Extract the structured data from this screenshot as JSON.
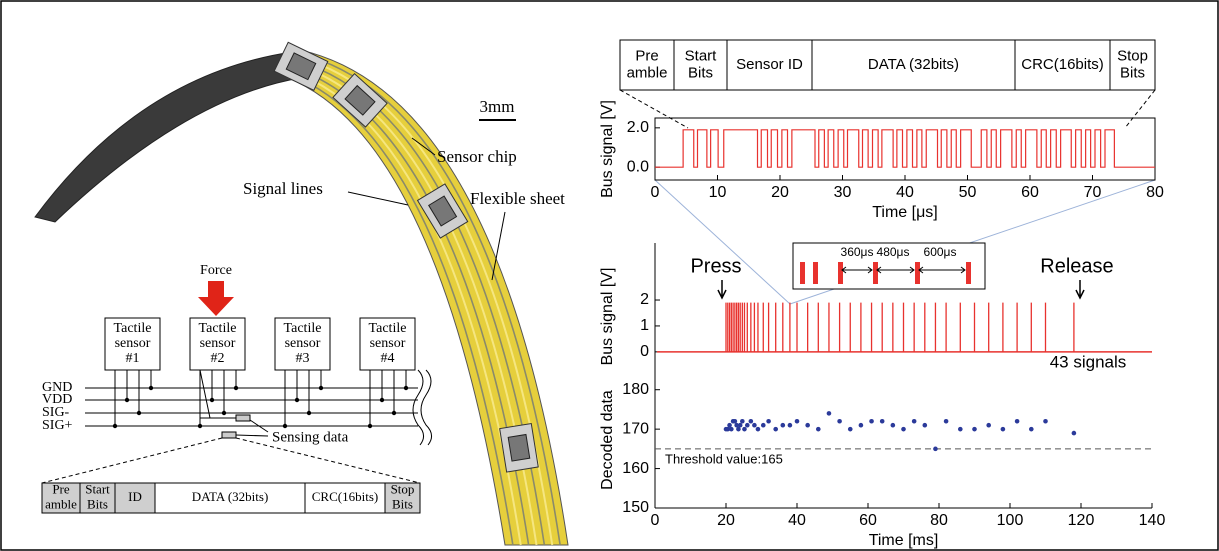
{
  "scale_bar": "3mm",
  "labels": {
    "sensor_chip": "Sensor chip",
    "signal_lines": "Signal lines",
    "flexible_sheet": "Flexible sheet",
    "force": "Force",
    "sensing_data": "Sensing data"
  },
  "sensors": [
    [
      "Tactile",
      "sensor",
      "#1"
    ],
    [
      "Tactile",
      "sensor",
      "#2"
    ],
    [
      "Tactile",
      "sensor",
      "#3"
    ],
    [
      "Tactile",
      "sensor",
      "#4"
    ]
  ],
  "bus_lines": [
    "GND",
    "VDD",
    "SIG-",
    "SIG+"
  ],
  "packet_small": [
    [
      "Pre",
      "amble"
    ],
    [
      "Start",
      "Bits"
    ],
    [
      "ID"
    ],
    [
      "DATA (32bits)"
    ],
    [
      "CRC(16bits)"
    ],
    [
      "Stop",
      "Bits"
    ]
  ],
  "packet_large": [
    [
      "Pre",
      "amble"
    ],
    [
      "Start",
      "Bits"
    ],
    [
      "Sensor ID"
    ],
    [
      "DATA (32bits)"
    ],
    [
      "CRC(16bits)"
    ],
    [
      "Stop",
      "Bits"
    ]
  ],
  "chart_data": [
    {
      "type": "line",
      "xlabel": "Time [μs]",
      "ylabel": "Bus signal [V]",
      "xlim": [
        0,
        80
      ],
      "ylim": [
        -0.65,
        2.5
      ],
      "xticks": [
        0,
        10,
        20,
        30,
        40,
        50,
        60,
        70,
        80
      ],
      "yticks": [
        {
          "value": 0,
          "label": "0.0"
        },
        {
          "value": 2,
          "label": "2.0"
        }
      ],
      "color": "#e8322e",
      "x": [
        0,
        4.5,
        4.5,
        6.2,
        6.2,
        6.8,
        6.8,
        8.3,
        8.3,
        8.9,
        8.9,
        10.1,
        10.1,
        11,
        11,
        16.4,
        16.4,
        17,
        17,
        18,
        18,
        18.6,
        18.6,
        19.6,
        19.6,
        20.3,
        20.3,
        21.2,
        21.2,
        21.9,
        21.9,
        25.6,
        25.6,
        26.2,
        26.2,
        27.1,
        27.1,
        27.7,
        27.7,
        28.6,
        28.6,
        29.3,
        29.3,
        30.2,
        30.2,
        30.8,
        30.8,
        32.6,
        32.6,
        33.2,
        33.2,
        34.1,
        34.1,
        34.8,
        34.8,
        35.7,
        35.7,
        36.3,
        36.3,
        38.1,
        38.1,
        38.7,
        38.7,
        39.6,
        39.6,
        40.3,
        40.3,
        41.2,
        41.2,
        41.9,
        41.9,
        42.7,
        42.7,
        43.4,
        43.4,
        45.2,
        45.2,
        45.8,
        45.8,
        46.7,
        46.7,
        47.4,
        47.4,
        48.2,
        48.2,
        48.9,
        48.9,
        50.6,
        50.6,
        52.2,
        52.2,
        53.1,
        53.1,
        53.8,
        53.8,
        54.6,
        54.6,
        55.3,
        55.3,
        57.1,
        57.1,
        57.8,
        57.8,
        58.6,
        58.6,
        59.3,
        59.3,
        61.1,
        61.1,
        61.8,
        61.8,
        62.6,
        62.6,
        63.3,
        63.3,
        64.2,
        64.2,
        64.9,
        64.9,
        66.6,
        66.6,
        67.3,
        67.3,
        68.2,
        68.2,
        68.9,
        68.9,
        69.7,
        69.7,
        70.4,
        70.4,
        71.3,
        71.3,
        72,
        72,
        73.5,
        73.5,
        80
      ],
      "values": [
        0,
        0,
        1.9,
        1.9,
        0,
        0,
        1.9,
        1.9,
        0,
        0,
        1.9,
        1.9,
        0,
        0,
        1.9,
        1.9,
        0,
        0,
        1.9,
        1.9,
        0,
        0,
        1.9,
        1.9,
        0,
        0,
        1.9,
        1.9,
        0,
        0,
        1.9,
        1.9,
        0,
        0,
        1.9,
        1.9,
        0,
        0,
        1.9,
        1.9,
        0,
        0,
        1.9,
        1.9,
        0,
        0,
        1.9,
        1.9,
        0,
        0,
        1.9,
        1.9,
        0,
        0,
        1.9,
        1.9,
        0,
        0,
        1.9,
        1.9,
        0,
        0,
        1.9,
        1.9,
        0,
        0,
        1.9,
        1.9,
        0,
        0,
        1.9,
        1.9,
        0,
        0,
        1.9,
        1.9,
        0,
        0,
        1.9,
        1.9,
        0,
        0,
        1.9,
        1.9,
        0,
        0,
        1.9,
        1.9,
        0,
        0,
        1.9,
        1.9,
        0,
        0,
        1.9,
        1.9,
        0,
        0,
        1.9,
        1.9,
        0,
        0,
        1.9,
        1.9,
        0,
        0,
        1.9,
        1.9,
        0,
        0,
        1.9,
        1.9,
        0,
        0,
        1.9,
        1.9,
        0,
        0,
        1.9,
        1.9,
        0,
        0,
        1.9,
        1.9,
        0,
        0,
        1.9,
        1.9,
        0,
        0,
        1.9,
        1.9,
        0,
        0,
        1.9,
        1.9,
        0,
        0
      ]
    },
    {
      "type": "stem",
      "ylabel": "Bus signal [V]",
      "xlim": [
        0,
        140
      ],
      "ylim": [
        -0.7,
        4.2
      ],
      "yticks": [
        0,
        1,
        2
      ],
      "color": "#e8322e",
      "x": [
        20,
        20.5,
        21,
        21.5,
        22,
        22.5,
        23,
        23.5,
        24,
        24.6,
        25.2,
        26,
        27,
        28,
        29,
        30.5,
        32,
        34,
        36,
        38,
        40,
        43,
        46,
        49,
        52,
        55,
        58,
        61,
        64,
        67,
        70,
        73,
        76,
        79,
        82,
        86,
        90,
        94,
        98,
        102,
        106,
        110,
        118
      ],
      "values": [
        1.9,
        1.9,
        1.9,
        1.9,
        1.9,
        1.9,
        1.9,
        1.9,
        1.9,
        1.9,
        1.9,
        1.9,
        1.9,
        1.9,
        1.9,
        1.9,
        1.9,
        1.9,
        1.9,
        1.9,
        1.9,
        1.9,
        1.9,
        1.9,
        1.9,
        1.9,
        1.9,
        1.9,
        1.9,
        1.9,
        1.9,
        1.9,
        1.9,
        1.9,
        1.9,
        1.9,
        1.9,
        1.9,
        1.9,
        1.9,
        1.9,
        1.9,
        1.9
      ],
      "annotations": {
        "press": "Press",
        "release": "Release",
        "count": "43 signals",
        "intervals": [
          "360μs",
          "480μs",
          "600μs"
        ]
      }
    },
    {
      "type": "scatter",
      "xlabel": "Time [ms]",
      "ylabel": "Decoded data",
      "xlim": [
        0,
        140
      ],
      "ylim": [
        150,
        185
      ],
      "xticks": [
        0,
        20,
        40,
        60,
        80,
        100,
        120,
        140
      ],
      "yticks": [
        150,
        160,
        170,
        180
      ],
      "color": "#2b3a9a",
      "x": [
        20,
        20.5,
        21,
        21.5,
        22,
        22.5,
        23,
        23.5,
        24,
        24.6,
        25.2,
        26,
        27,
        28,
        29,
        30.5,
        32,
        34,
        36,
        38,
        40,
        43,
        46,
        49,
        52,
        55,
        58,
        61,
        64,
        67,
        70,
        73,
        76,
        79,
        82,
        86,
        90,
        94,
        98,
        102,
        106,
        110,
        118
      ],
      "values": [
        170,
        170,
        171,
        170,
        172,
        172,
        171,
        170,
        171,
        172,
        170,
        171,
        172,
        171,
        170,
        171,
        172,
        170,
        171,
        171,
        172,
        171,
        170,
        174,
        172,
        170,
        171,
        172,
        172,
        171,
        170,
        172,
        171,
        165,
        172,
        170,
        170,
        171,
        170,
        172,
        170,
        172,
        169
      ],
      "threshold": 165,
      "threshold_label": "Threshold value:165"
    }
  ]
}
